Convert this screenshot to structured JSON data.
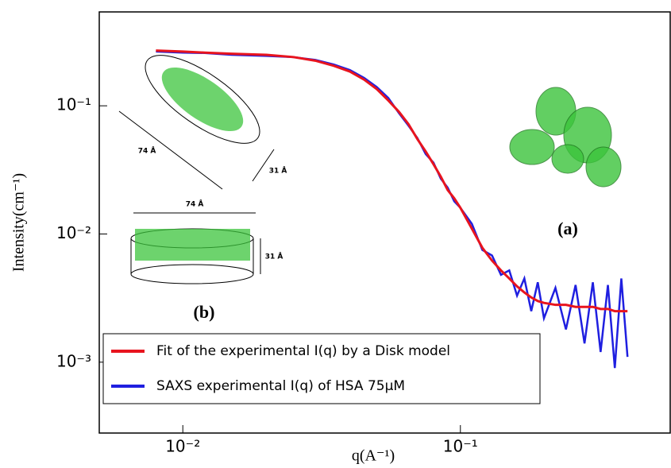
{
  "chart_data": {
    "type": "line",
    "xlabel": "q(A⁻¹)",
    "ylabel": "Intensity(cm⁻¹)",
    "xscale": "log",
    "yscale": "log",
    "xlim": [
      0.005,
      0.57
    ],
    "ylim": [
      0.00028,
      0.54
    ],
    "xticks": [
      {
        "value": 0.01,
        "label": "10⁻²"
      },
      {
        "value": 0.1,
        "label": "10⁻¹"
      }
    ],
    "yticks": [
      {
        "value": 0.001,
        "label": "10⁻³"
      },
      {
        "value": 0.01,
        "label": "10⁻²"
      },
      {
        "value": 0.1,
        "label": "10⁻¹"
      }
    ],
    "legend": "lower left",
    "x": [
      0.008,
      0.01,
      0.012,
      0.015,
      0.02,
      0.025,
      0.03,
      0.035,
      0.04,
      0.045,
      0.05,
      0.055,
      0.06,
      0.065,
      0.07,
      0.075,
      0.08,
      0.085,
      0.09,
      0.095,
      0.1,
      0.11,
      0.12,
      0.13,
      0.14,
      0.15,
      0.16,
      0.17,
      0.18,
      0.19,
      0.2,
      0.22,
      0.24,
      0.26,
      0.28,
      0.3,
      0.32,
      0.34,
      0.36,
      0.38,
      0.4
    ],
    "series": [
      {
        "name": "SAXS experimental I(q) of HSA 75μM",
        "color": "#1f1fe0",
        "values": [
          0.265,
          0.26,
          0.258,
          0.25,
          0.245,
          0.24,
          0.228,
          0.21,
          0.19,
          0.165,
          0.14,
          0.115,
          0.088,
          0.07,
          0.056,
          0.042,
          0.036,
          0.027,
          0.023,
          0.018,
          0.016,
          0.012,
          0.0075,
          0.0068,
          0.0048,
          0.0052,
          0.0033,
          0.0045,
          0.0025,
          0.0042,
          0.0022,
          0.0038,
          0.0018,
          0.004,
          0.0014,
          0.0042,
          0.0012,
          0.004,
          0.0009,
          0.0045,
          0.0011
        ]
      },
      {
        "name": "Fit of the experimental I(q) by a Disk model",
        "color": "#e8141e",
        "values": [
          0.27,
          0.265,
          0.26,
          0.255,
          0.25,
          0.24,
          0.225,
          0.205,
          0.185,
          0.16,
          0.135,
          0.11,
          0.09,
          0.072,
          0.055,
          0.044,
          0.035,
          0.028,
          0.022,
          0.019,
          0.016,
          0.011,
          0.0078,
          0.0062,
          0.0052,
          0.0045,
          0.0039,
          0.0035,
          0.0032,
          0.003,
          0.0029,
          0.0028,
          0.0028,
          0.0027,
          0.0027,
          0.0027,
          0.0026,
          0.0026,
          0.0025,
          0.0025,
          0.0025
        ]
      }
    ],
    "annotations": [
      "(a)",
      "(b)",
      "74 Å",
      "31 Å",
      "74 Å",
      "31 Å"
    ]
  }
}
